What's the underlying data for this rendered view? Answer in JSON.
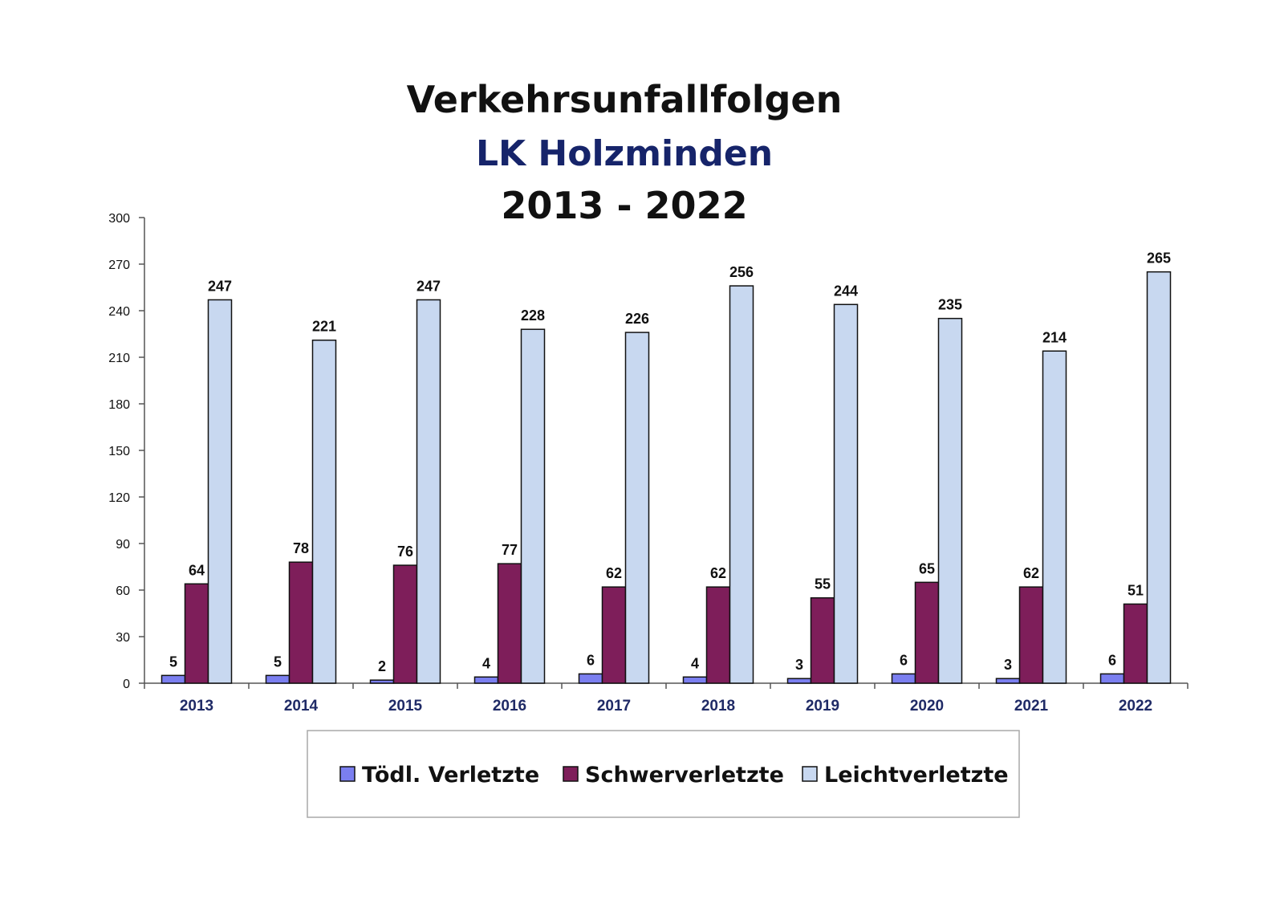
{
  "chart_data": {
    "type": "bar",
    "title": "Verkehrsunfallfolgen",
    "subtitle": "LK Holzminden",
    "subtitle2": "2013 - 2022",
    "categories": [
      "2013",
      "2014",
      "2015",
      "2016",
      "2017",
      "2018",
      "2019",
      "2020",
      "2021",
      "2022"
    ],
    "series": [
      {
        "name": "Tödl. Verletzte",
        "color": "#7b7ff0",
        "values": [
          5,
          5,
          2,
          4,
          6,
          4,
          3,
          6,
          3,
          6
        ]
      },
      {
        "name": "Schwerverletzte",
        "color": "#7e1e5a",
        "values": [
          64,
          78,
          76,
          77,
          62,
          62,
          55,
          65,
          62,
          51
        ]
      },
      {
        "name": "Leichtverletzte",
        "color": "#c8d8f0",
        "values": [
          247,
          221,
          247,
          228,
          226,
          256,
          244,
          235,
          214,
          265
        ]
      }
    ],
    "ylim": [
      0,
      300
    ],
    "yticks": [
      0,
      30,
      60,
      90,
      120,
      150,
      180,
      210,
      240,
      270,
      300
    ],
    "legend_position": "bottom",
    "grid": false,
    "title_color": "#111111",
    "subtitle_color": "#16246a"
  }
}
